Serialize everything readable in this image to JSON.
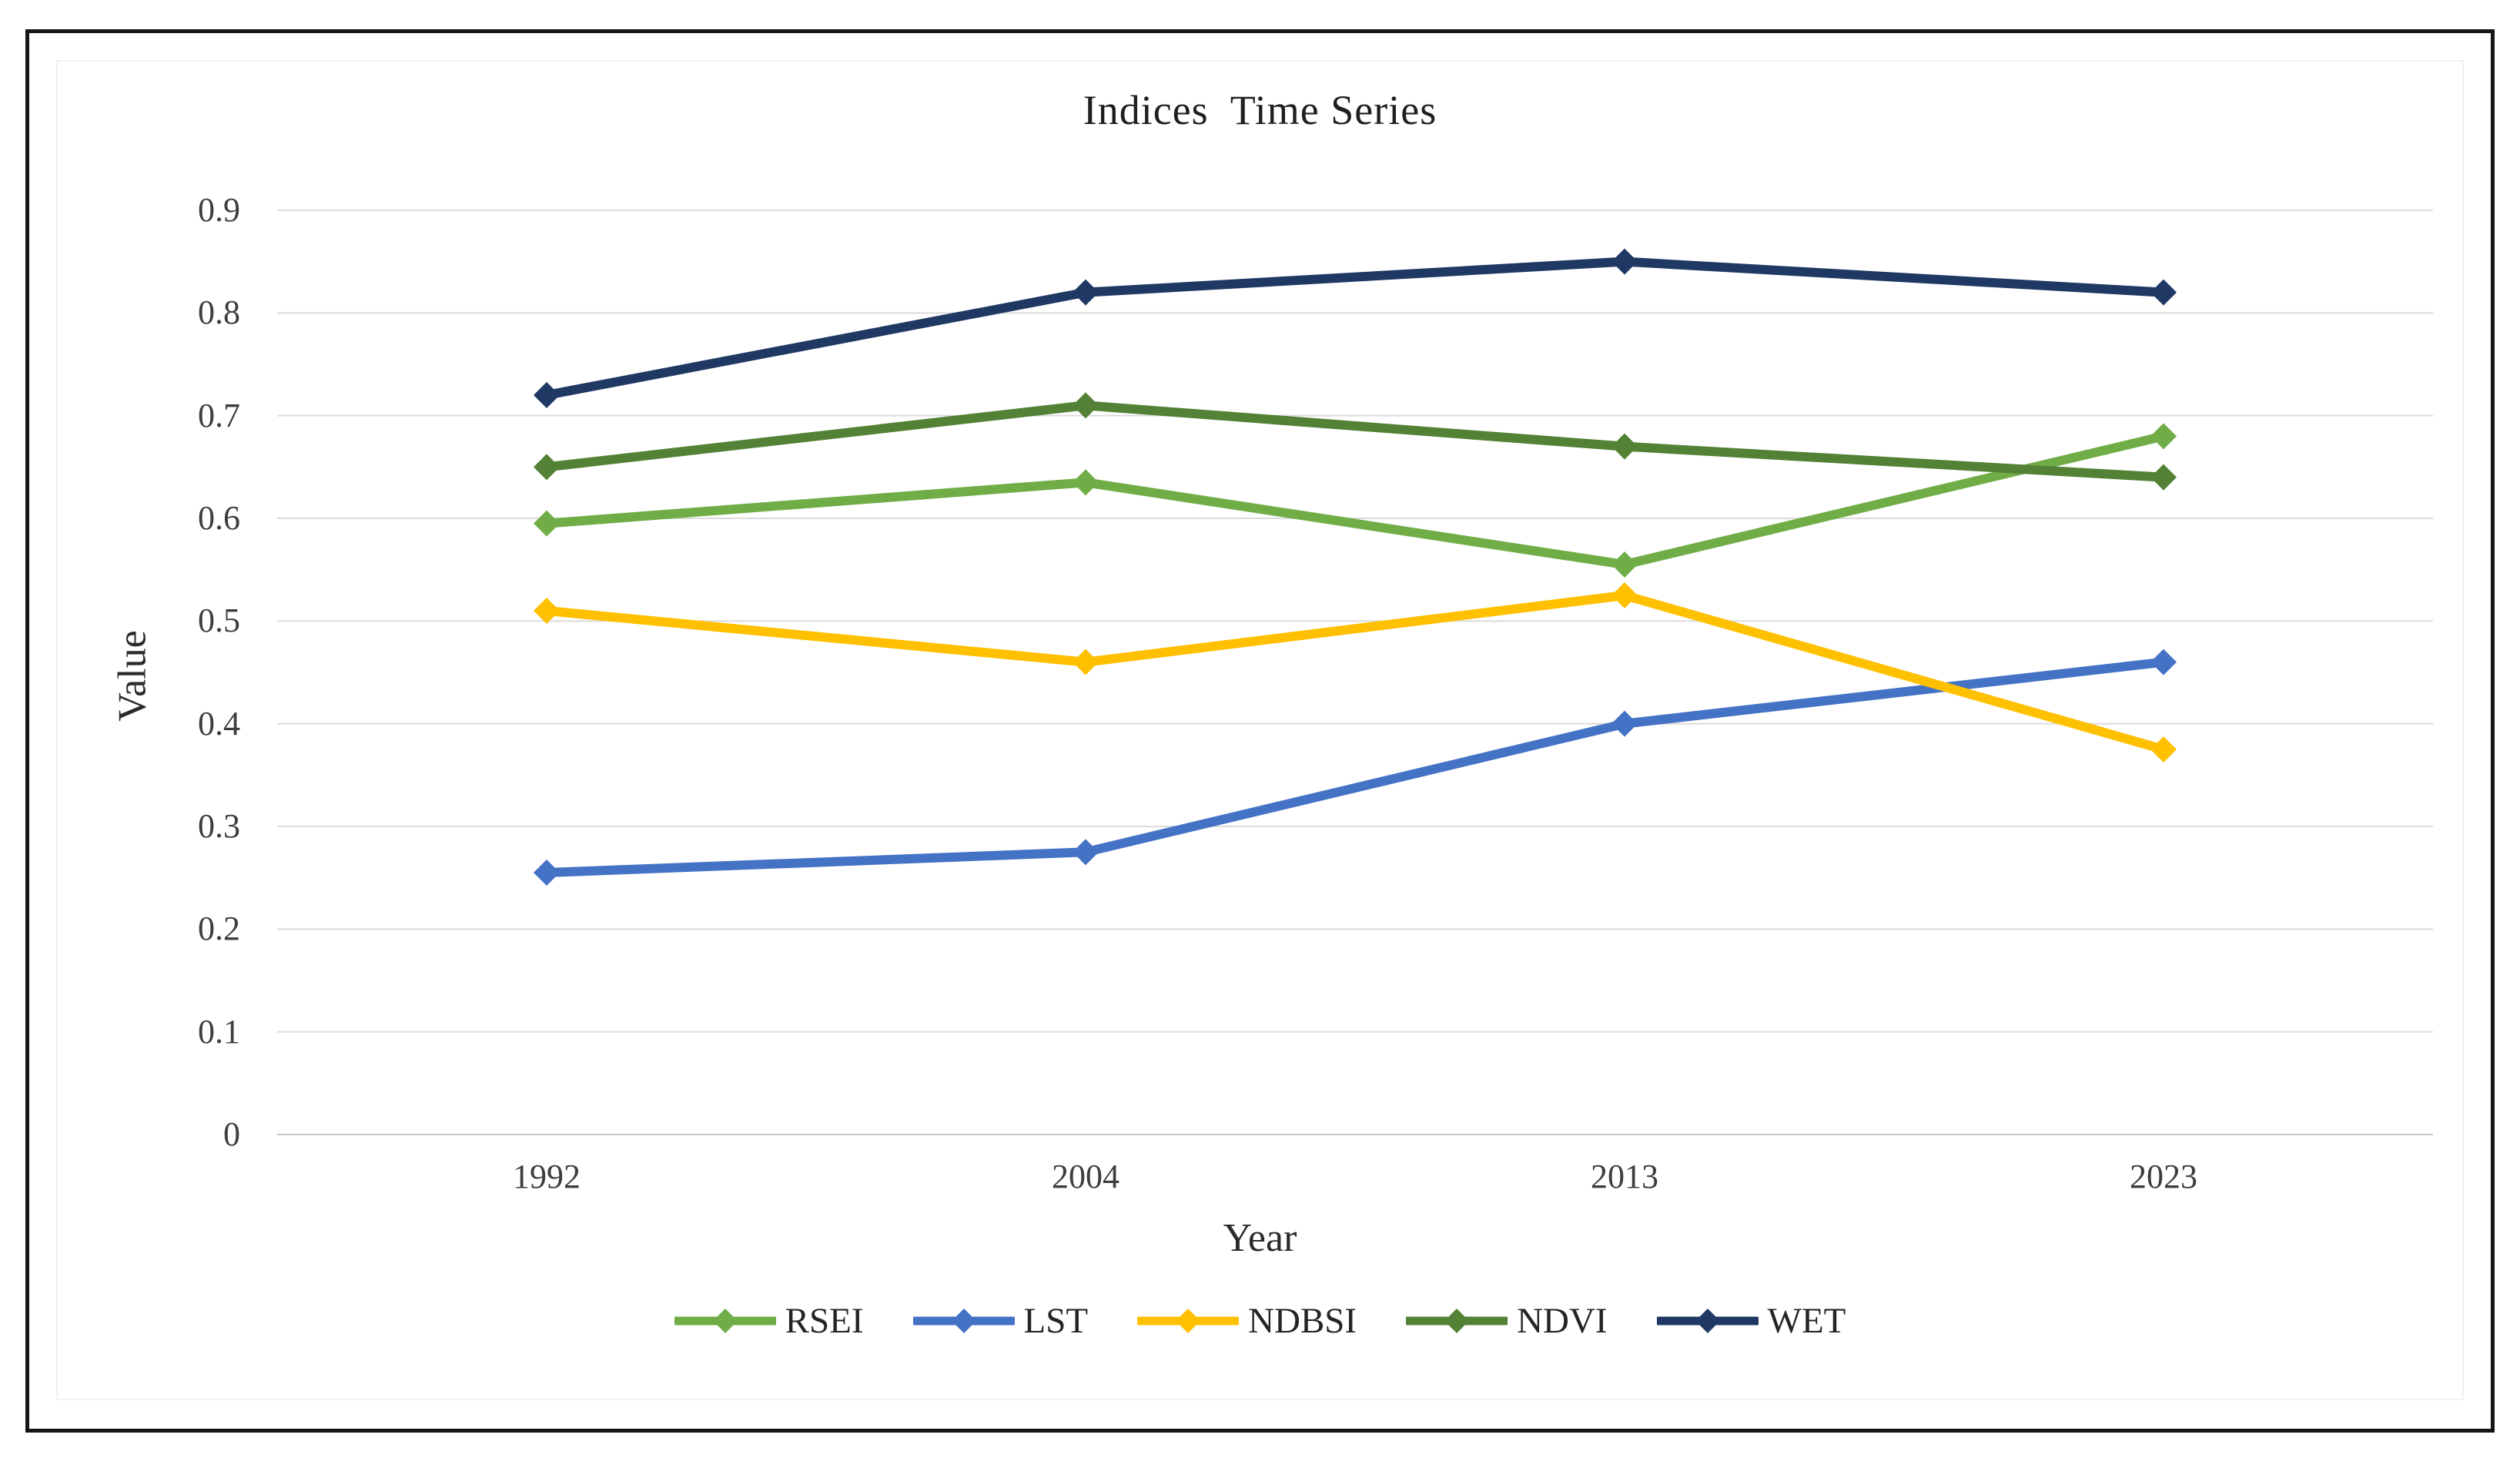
{
  "figure": {
    "background": "#ffffff",
    "border_color": "#151515"
  },
  "chart_data": {
    "type": "line",
    "title": "Indices  Time Series",
    "xlabel": "Year",
    "ylabel": "Value",
    "categories": [
      "1992",
      "2004",
      "2013",
      "2023"
    ],
    "series": [
      {
        "name": "RSEI",
        "color": "#70AD47",
        "values": [
          0.595,
          0.635,
          0.555,
          0.68
        ]
      },
      {
        "name": "LST",
        "color": "#4472C4",
        "values": [
          0.255,
          0.275,
          0.4,
          0.46
        ]
      },
      {
        "name": "NDBSI",
        "color": "#FFC000",
        "values": [
          0.51,
          0.46,
          0.525,
          0.375
        ]
      },
      {
        "name": "NDVI",
        "color": "#538135",
        "values": [
          0.65,
          0.71,
          0.67,
          0.64
        ]
      },
      {
        "name": "WET",
        "color": "#1F3864",
        "values": [
          0.72,
          0.82,
          0.85,
          0.82
        ]
      }
    ],
    "ylim": [
      0,
      0.9
    ],
    "y_ticks": [
      "0.9",
      "0.8",
      "0.7",
      "0.6",
      "0.5",
      "0.4",
      "0.3",
      "0.2",
      "0.1",
      "0"
    ],
    "x_ticks": [
      "1992",
      "2004",
      "2013",
      "2023"
    ],
    "grid": true,
    "gridline_color": "#DBDBDB",
    "axis_line_color": "#C6C6C6",
    "marker": "diamond",
    "legend_position": "bottom"
  }
}
